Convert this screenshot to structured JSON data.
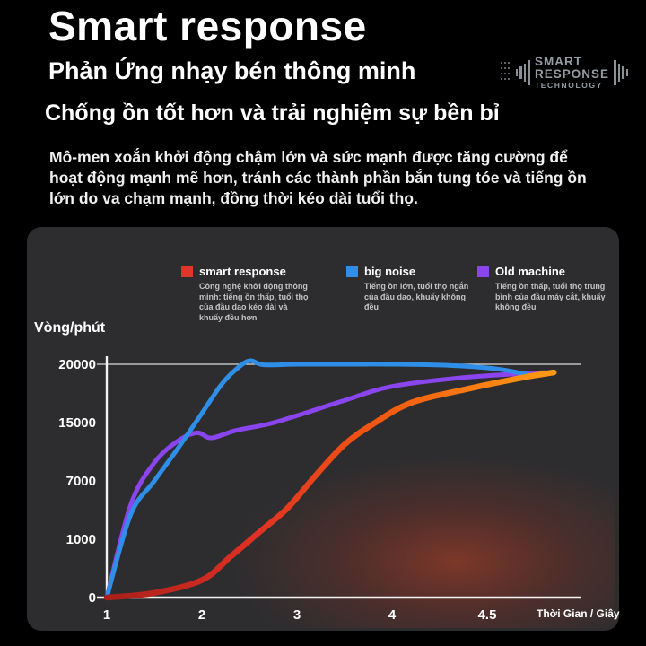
{
  "header": {
    "title": "Smart response",
    "subtitle": "Phản Ứng nhạy bén thông minh",
    "tagline": "Chống ồn tốt hơn và trải nghiệm sự bền bỉ",
    "description": "Mô-men xoắn khởi động chậm lớn và sức mạnh được tăng cường để hoạt động mạnh mẽ hơn, tránh các thành phần bắn tung tóe và tiếng ồn lớn do va chạm mạnh, đồng thời kéo dài tuổi thọ.",
    "logo": {
      "line1": "SMART",
      "line2": "RESPONSE",
      "line3": "TECHNOLOGY"
    }
  },
  "chart_data": {
    "type": "line",
    "ylabel": "Vòng/phút",
    "xlabel": "Thời Gian / Giây",
    "y_ticks": [
      0,
      1000,
      7000,
      15000,
      20000
    ],
    "x_ticks": [
      "1",
      "2",
      "3",
      "4",
      "4.5"
    ],
    "axis_note": "ticks are equally spaced (piecewise scale)",
    "colors": {
      "red": "#e0352a",
      "blue": "#2f8fe8",
      "purple": "#8a45ef",
      "panel": "#2d2d2f",
      "background": "#000000"
    },
    "legend": [
      {
        "name": "smart response",
        "color": "#e0352a",
        "note": "Công nghệ khởi động thông minh: tiếng ồn thấp, tuổi thọ của đầu dao kéo dài và khuấy đều hơn"
      },
      {
        "name": "big noise",
        "color": "#2f8fe8",
        "note": "Tiếng ồn lớn, tuổi thọ ngắn của đầu dao, khuấy không đều"
      },
      {
        "name": "Old machine",
        "color": "#8a45ef",
        "note": "Tiếng ồn thấp, tuổi thọ trung bình của đầu máy cắt, khuấy không đều"
      }
    ],
    "series": [
      {
        "name": "smart response",
        "gradient": [
          "#a81f1a",
          "#e03124",
          "#f4600f",
          "#ff9915"
        ],
        "points": [
          [
            1,
            0
          ],
          [
            1.5,
            80
          ],
          [
            2,
            300
          ],
          [
            2.3,
            700
          ],
          [
            2.6,
            1700
          ],
          [
            2.9,
            4200
          ],
          [
            3.2,
            7800
          ],
          [
            3.5,
            12000
          ],
          [
            3.8,
            14800
          ],
          [
            4.1,
            16700
          ],
          [
            4.4,
            17900
          ],
          [
            4.7,
            18900
          ],
          [
            4.85,
            19300
          ]
        ]
      },
      {
        "name": "big noise",
        "color": "#2f8fe8",
        "points": [
          [
            1,
            0
          ],
          [
            1.25,
            3500
          ],
          [
            1.5,
            7000
          ],
          [
            1.75,
            11500
          ],
          [
            2,
            15800
          ],
          [
            2.2,
            18200
          ],
          [
            2.35,
            19500
          ],
          [
            2.5,
            20300
          ],
          [
            2.65,
            19950
          ],
          [
            3,
            20000
          ],
          [
            3.5,
            20000
          ],
          [
            4,
            20000
          ],
          [
            4.3,
            19900
          ],
          [
            4.55,
            19600
          ],
          [
            4.75,
            19000
          ]
        ]
      },
      {
        "name": "Old machine",
        "color": "#8a45ef",
        "points": [
          [
            1,
            0
          ],
          [
            1.25,
            4500
          ],
          [
            1.5,
            9500
          ],
          [
            1.75,
            12500
          ],
          [
            1.95,
            13600
          ],
          [
            2.1,
            12900
          ],
          [
            2.35,
            13900
          ],
          [
            2.7,
            14800
          ],
          [
            3,
            15600
          ],
          [
            3.5,
            16900
          ],
          [
            4,
            18100
          ],
          [
            4.4,
            18900
          ],
          [
            4.8,
            19300
          ]
        ]
      }
    ]
  }
}
